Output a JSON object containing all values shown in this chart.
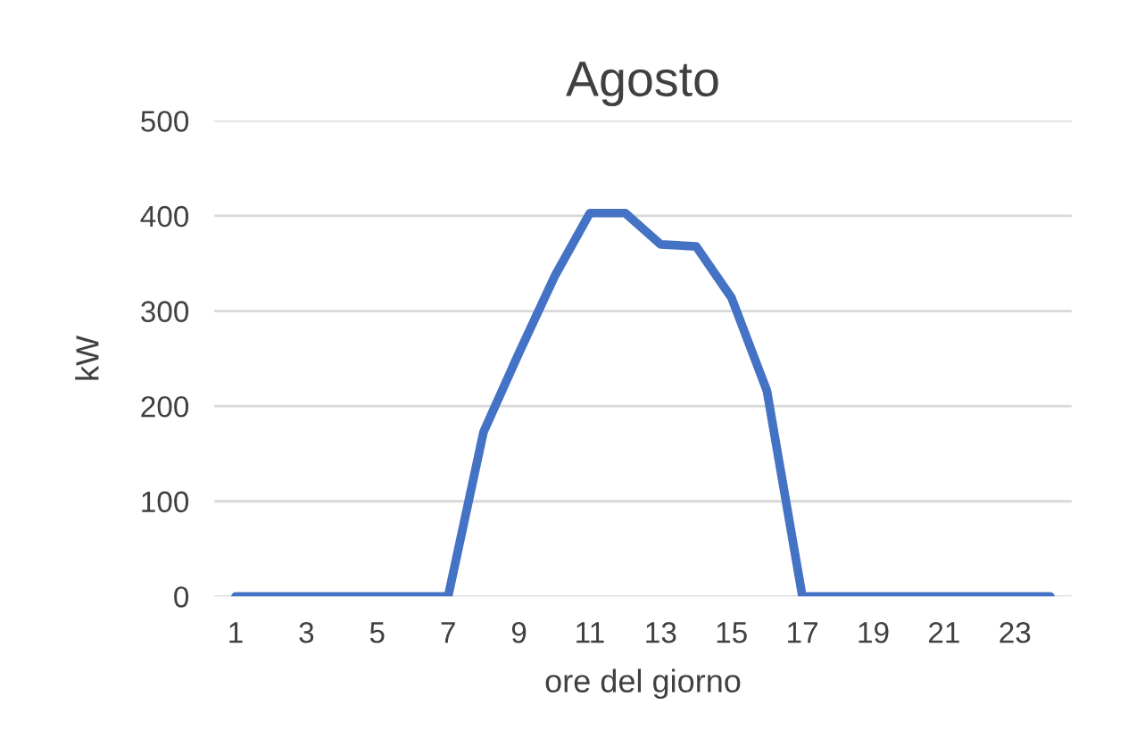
{
  "chart_data": {
    "type": "line",
    "title": "Agosto",
    "xlabel": "ore del giorno",
    "ylabel": "kW",
    "categories": [
      "1",
      null,
      "3",
      null,
      "5",
      null,
      "7",
      null,
      "9",
      null,
      "11",
      null,
      "13",
      null,
      "15",
      null,
      "17",
      null,
      "19",
      null,
      "21",
      null,
      "23",
      null
    ],
    "series": [
      {
        "color": "#4472c4",
        "values": [
          0,
          0,
          0,
          0,
          0,
          0,
          0,
          173,
          256,
          336,
          403,
          403,
          370,
          368,
          314,
          216,
          0,
          0,
          0,
          0,
          0,
          0,
          0,
          0
        ]
      }
    ],
    "ylim": [
      0,
      500
    ],
    "yticks": [
      0,
      100,
      200,
      300,
      400,
      500
    ],
    "grid": "y",
    "legend": false,
    "marker": "none",
    "line_style": "solid"
  }
}
